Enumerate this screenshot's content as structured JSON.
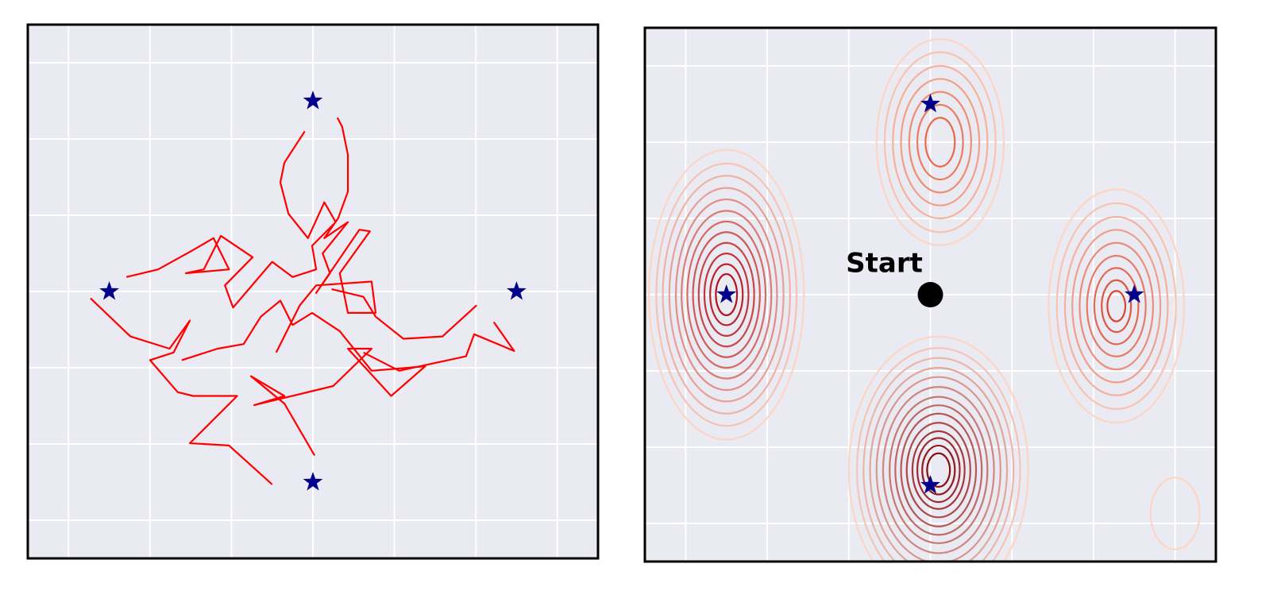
{
  "chart_data": [
    {
      "type": "trajectory",
      "xlim": [
        -3.5,
        3.5
      ],
      "ylim": [
        -3.5,
        3.5
      ],
      "xticks": [
        -3,
        -2,
        -1,
        0,
        1,
        2,
        3
      ],
      "yticks": [
        -3,
        -2,
        -1,
        0,
        1,
        2,
        3
      ],
      "grid": true,
      "series": [
        {
          "color": "#ff0000",
          "x": [
            0.3,
            0.36,
            0.43,
            0.43,
            0.31,
            0.14,
            0.43,
            0.12,
            0.21,
            0.04,
            0.57,
            0.7,
            0.33,
            0.43,
            0.77,
            0.72,
            0.04,
            -0.16,
            -0.45,
            null,
            -0.1,
            -0.35,
            -0.4,
            -0.3,
            -0.06,
            0.14,
            0.28,
            -0.01,
            0.04,
            -0.25,
            -0.5,
            -0.98,
            -1.08,
            -0.74,
            -1.13,
            -1.34,
            -1.56,
            -1.03,
            -1.22,
            -1.51,
            -1.9,
            -2.29,
            null,
            -2.73,
            -2.24,
            -1.76,
            -1.51,
            -1.71,
            -2.0,
            -1.66,
            -1.47,
            -0.93,
            -1.51,
            -1.03,
            -0.5,
            null,
            0.02,
            -0.35,
            -0.76,
            -0.35,
            -0.72,
            0.25,
            0.72,
            0.43,
            0.96,
            1.38,
            0.72,
            0.33,
            -0.01,
            -0.25,
            -0.4,
            -0.64,
            -0.85,
            -1.17,
            -1.61,
            null,
            2.01,
            1.59,
            1.11,
            0.77,
            0.62,
            0.23,
            null,
            2.22,
            2.47,
            1.98,
            1.88,
            1.06,
            0.62
          ],
          "y": [
            2.28,
            2.16,
            1.79,
            1.31,
            0.96,
            0.7,
            0.91,
            0.5,
            0.24,
            -0.02,
            0.81,
            0.79,
            0.24,
            -0.28,
            -0.28,
            0.13,
            0.08,
            -0.18,
            -0.8,
            null,
            2.1,
            1.69,
            1.43,
            1.02,
            0.7,
            1.17,
            0.91,
            0.6,
            0.29,
            0.19,
            0.39,
            -0.21,
            0.08,
            0.45,
            0.73,
            0.29,
            0.24,
            0.29,
            0.7,
            0.52,
            0.29,
            0.19,
            null,
            -0.09,
            -0.59,
            -0.75,
            -0.38,
            -0.8,
            -0.9,
            -1.32,
            -1.37,
            -1.37,
            -1.99,
            -2.02,
            -2.53,
            null,
            -2.15,
            -1.47,
            -1.11,
            -1.37,
            -1.49,
            -1.24,
            -0.75,
            -0.75,
            -1.37,
            -0.98,
            -1.04,
            -0.52,
            -0.28,
            -0.44,
            -0.12,
            -0.33,
            -0.69,
            -0.75,
            -0.9,
            null,
            -0.18,
            -0.59,
            -0.62,
            -0.33,
            -0.07,
            0.03,
            null,
            -0.4,
            -0.78,
            -0.56,
            -0.85,
            -1.04,
            -0.8
          ]
        }
      ],
      "targets": {
        "color": "#00008b",
        "x": [
          0,
          -2.5,
          2.5,
          0
        ],
        "y": [
          2.5,
          0,
          0,
          -2.5
        ]
      }
    },
    {
      "type": "contour",
      "xlim": [
        -3.5,
        3.5
      ],
      "ylim": [
        -3.5,
        3.5
      ],
      "xticks": [
        -3,
        -2,
        -1,
        0,
        1,
        2,
        3
      ],
      "yticks": [
        -3,
        -2,
        -1,
        0,
        1,
        2,
        3
      ],
      "grid": true,
      "outer_color": "#fdd5c4",
      "contours": [
        {
          "cx": -2.5,
          "cy": 0,
          "inner_color": "#b3121b",
          "rx": [
            0.95,
            0.86,
            0.78,
            0.7,
            0.62,
            0.55,
            0.48,
            0.41,
            0.34,
            0.27,
            0.2,
            0.13
          ],
          "ry": [
            1.9,
            1.72,
            1.56,
            1.4,
            1.25,
            1.1,
            0.96,
            0.82,
            0.68,
            0.54,
            0.4,
            0.27
          ]
        },
        {
          "cx": 0.1,
          "cy": -2.3,
          "inner_color": "#8b0a10",
          "rx": [
            1.1,
            1.0,
            0.92,
            0.84,
            0.76,
            0.68,
            0.6,
            0.53,
            0.46,
            0.39,
            0.32,
            0.26,
            0.2,
            0.14
          ],
          "ry": [
            1.75,
            1.6,
            1.47,
            1.34,
            1.22,
            1.09,
            0.96,
            0.85,
            0.74,
            0.62,
            0.51,
            0.42,
            0.32,
            0.22
          ]
        },
        {
          "cx": 0.12,
          "cy": 2.0,
          "inner_color": "#e8684a",
          "rx": [
            0.78,
            0.68,
            0.58,
            0.48,
            0.38,
            0.28,
            0.18
          ],
          "ry": [
            1.35,
            1.18,
            1.0,
            0.83,
            0.66,
            0.49,
            0.32
          ]
        },
        {
          "cx": 2.28,
          "cy": -0.15,
          "inner_color": "#d9442f",
          "rx": [
            0.83,
            0.73,
            0.63,
            0.54,
            0.45,
            0.36,
            0.27,
            0.18,
            0.11
          ],
          "ry": [
            1.53,
            1.35,
            1.17,
            1.0,
            0.83,
            0.66,
            0.5,
            0.34,
            0.2
          ]
        },
        {
          "cx": 3.0,
          "cy": -2.87,
          "inner_color": "#fcc9b3",
          "rx": [
            0.3
          ],
          "ry": [
            0.47
          ]
        }
      ],
      "targets": {
        "color": "#00008b",
        "x": [
          0,
          -2.5,
          2.5,
          0
        ],
        "y": [
          2.5,
          0,
          0,
          -2.5
        ]
      },
      "start": {
        "label": "Start",
        "x": 0,
        "y": 0,
        "color": "#000000"
      }
    }
  ]
}
